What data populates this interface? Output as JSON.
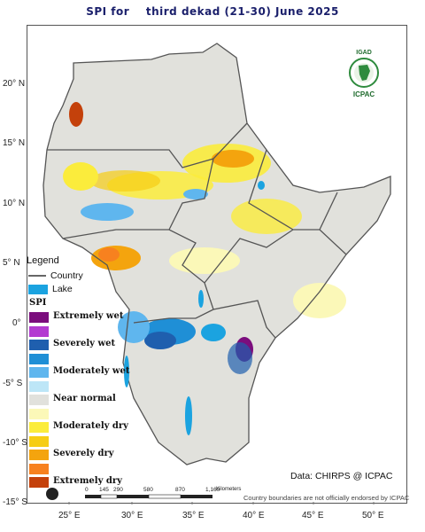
{
  "title": "SPI for    third dekad (21-30) June 2025",
  "lat_labels": [
    {
      "label": "20° N",
      "lat": 20
    },
    {
      "label": "15° N",
      "lat": 15
    },
    {
      "label": "10° N",
      "lat": 10
    },
    {
      "label": "5° N",
      "lat": 5
    },
    {
      "label": "0°",
      "lat": 0
    },
    {
      "label": "-5° S",
      "lat": -5
    },
    {
      "label": "-10° S",
      "lat": -10
    },
    {
      "label": "-15° S",
      "lat": -15
    }
  ],
  "lon_labels": [
    {
      "label": "25° E",
      "lon": 25
    },
    {
      "label": "30° E",
      "lon": 30
    },
    {
      "label": "35° E",
      "lon": 35
    },
    {
      "label": "40° E",
      "lon": 40
    },
    {
      "label": "45° E",
      "lon": 45
    },
    {
      "label": "50° E",
      "lon": 50
    }
  ],
  "legend": {
    "title": "Legend",
    "country_label": "Country",
    "lake_label": "Lake",
    "lake_color": "#1ba3e0",
    "spi_title": "SPI",
    "classes": [
      {
        "label": "Extremely wet",
        "color": "#7b0d7d"
      },
      {
        "label": "",
        "color": "#b33bd1"
      },
      {
        "label": "Severely wet",
        "color": "#1f5fae"
      },
      {
        "label": "",
        "color": "#1f8fd6"
      },
      {
        "label": "Moderately wet",
        "color": "#5fb6ee"
      },
      {
        "label": "",
        "color": "#bde6f7"
      },
      {
        "label": "Near normal",
        "color": "#e1e1dc"
      },
      {
        "label": "",
        "color": "#fbf8b8"
      },
      {
        "label": "Moderately dry",
        "color": "#fbec3c"
      },
      {
        "label": "",
        "color": "#f6cd14"
      },
      {
        "label": "Severely dry",
        "color": "#f4a40e"
      },
      {
        "label": "",
        "color": "#f7811f"
      },
      {
        "label": "Extremely dry",
        "color": "#c4410b"
      }
    ]
  },
  "logo": {
    "top_text": "IGAD",
    "bottom_text": "ICPAC"
  },
  "credit": "Data: CHIRPS @ ICPAC",
  "disclaimer": "Country boundaries are not officially endorsed by ICPAC",
  "scale_bar": {
    "ticks": [
      "0",
      "145",
      "290",
      "580",
      "870",
      "1,160"
    ],
    "unit": "Kilometers"
  }
}
